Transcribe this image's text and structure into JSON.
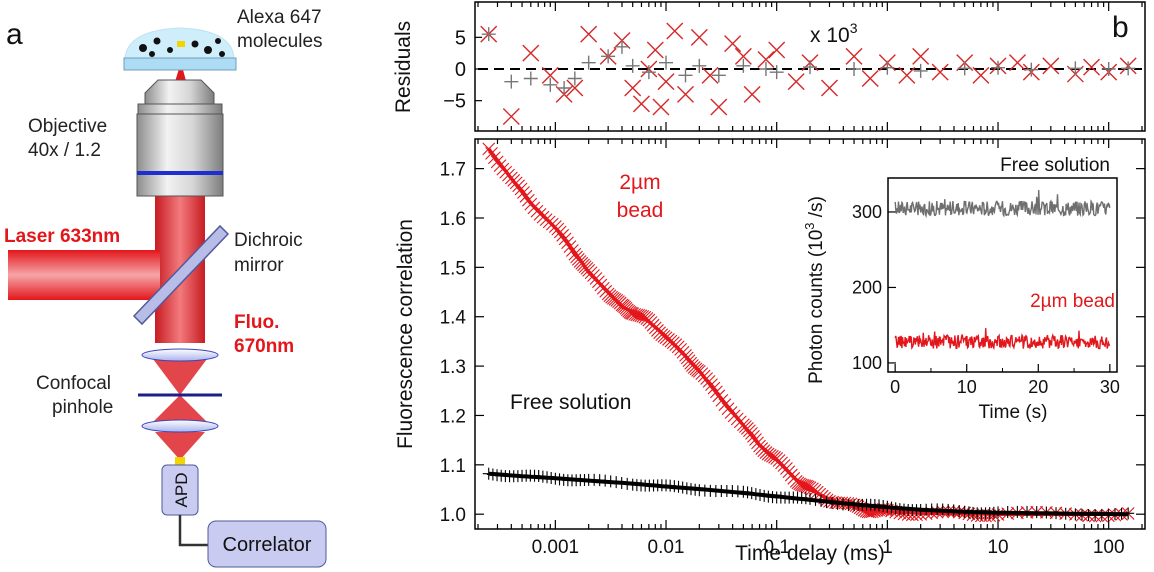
{
  "panel_a": {
    "letter": "a",
    "sample_label_1": "Alexa 647",
    "sample_label_2": "molecules",
    "objective_label_1": "Objective",
    "objective_label_2": "40x / 1.2",
    "laser_label": "Laser 633nm",
    "dichroic_label_1": "Dichroic",
    "dichroic_label_2": "mirror",
    "fluo_label_1": "Fluo.",
    "fluo_label_2": "670nm",
    "pinhole_label_1": "Confocal",
    "pinhole_label_2": "pinhole",
    "apd_label": "APD",
    "correlator_label": "Correlator",
    "colors": {
      "laser": "#e3161b",
      "blue_line": "#1f2ed1",
      "box": "#c9ccf0"
    }
  },
  "panel_b": {
    "letter": "b"
  },
  "chart_data": [
    {
      "type": "scatter",
      "name": "residuals",
      "ylabel": "Residuals",
      "x_scale": "log",
      "xlim": [
        0.0002,
        200
      ],
      "ylim": [
        -9,
        9
      ],
      "yticks": [
        5,
        0,
        -5
      ],
      "scale_annotation": "x 10",
      "scale_exponent": "3",
      "zero_line": "dashed",
      "series": [
        {
          "color": "#d62828",
          "marker": "x",
          "x": [
            0.00025,
            0.0004,
            0.0006,
            0.0009,
            0.0012,
            0.0015,
            0.002,
            0.003,
            0.004,
            0.005,
            0.006,
            0.007,
            0.008,
            0.009,
            0.01,
            0.012,
            0.015,
            0.02,
            0.025,
            0.03,
            0.04,
            0.05,
            0.06,
            0.08,
            0.1,
            0.15,
            0.2,
            0.3,
            0.5,
            0.7,
            1,
            1.5,
            2,
            3,
            5,
            7,
            10,
            15,
            20,
            30,
            50,
            70,
            100,
            150
          ],
          "y": [
            5.5,
            -7.5,
            2.5,
            -1,
            -4,
            -3,
            5.5,
            2,
            4.5,
            -3,
            -5.5,
            0,
            3,
            -6,
            -2,
            6,
            -4,
            5,
            -1,
            -6,
            4,
            2,
            -4,
            1.5,
            3,
            -2,
            1,
            -3,
            2,
            -1.5,
            1,
            -1,
            2,
            -0.5,
            1,
            -1,
            0.5,
            1,
            -0.5,
            0.5,
            -0.8,
            0.3,
            -0.5,
            0.5
          ]
        },
        {
          "color": "#777777",
          "marker": "+",
          "x": [
            0.00025,
            0.0004,
            0.0006,
            0.0009,
            0.0012,
            0.0015,
            0.002,
            0.003,
            0.004,
            0.005,
            0.007,
            0.01,
            0.015,
            0.02,
            0.03,
            0.05,
            0.08,
            0.1,
            0.2,
            0.5,
            1,
            2,
            5,
            10,
            20,
            50,
            100,
            150
          ],
          "y": [
            5.5,
            -2,
            -1.5,
            -2.5,
            -3,
            -1.5,
            1,
            2,
            3.5,
            0.5,
            -0.5,
            1,
            -1,
            0.5,
            -1,
            0.5,
            0,
            -0.5,
            0.3,
            0,
            0.2,
            -0.3,
            0.1,
            0.2,
            -0.1,
            0.1,
            0,
            0.1
          ]
        }
      ]
    },
    {
      "type": "line",
      "name": "fcs",
      "xlabel": "Time delay (ms)",
      "ylabel": "Fluorescence correlation",
      "x_scale": "log",
      "xlim": [
        0.0002,
        200
      ],
      "ylim": [
        0.97,
        1.76
      ],
      "xticks": [
        0.001,
        0.01,
        0.1,
        1,
        10,
        100
      ],
      "xtick_labels": [
        "0.001",
        "0.01",
        "0.1",
        "1",
        "10",
        "100"
      ],
      "yticks": [
        1.0,
        1.1,
        1.2,
        1.3,
        1.4,
        1.5,
        1.6,
        1.7
      ],
      "ytick_labels": [
        "1.0",
        "1.1",
        "1.2",
        "1.3",
        "1.4",
        "1.5",
        "1.6",
        "1.7"
      ],
      "annotations": [
        "2µm",
        "bead",
        "Free solution"
      ],
      "series": [
        {
          "color": "#e3161b",
          "marker": "x",
          "x": [
            0.00025,
            0.0004,
            0.0006,
            0.001,
            0.0015,
            0.002,
            0.003,
            0.004,
            0.005,
            0.007,
            0.01,
            0.015,
            0.02,
            0.03,
            0.05,
            0.07,
            0.1,
            0.15,
            0.2,
            0.3,
            0.5,
            0.7,
            1,
            2,
            5,
            10,
            50,
            150
          ],
          "y": [
            1.74,
            1.68,
            1.63,
            1.58,
            1.53,
            1.49,
            1.45,
            1.42,
            1.41,
            1.39,
            1.36,
            1.32,
            1.29,
            1.24,
            1.18,
            1.14,
            1.11,
            1.07,
            1.05,
            1.03,
            1.015,
            1.008,
            1.005,
            1.002,
            1.001,
            1.0,
            1.0,
            1.0
          ]
        },
        {
          "color": "#000000",
          "marker": "+",
          "x": [
            0.00025,
            0.0005,
            0.001,
            0.002,
            0.005,
            0.01,
            0.02,
            0.05,
            0.1,
            0.2,
            0.5,
            1,
            2,
            5,
            10,
            50,
            150
          ],
          "y": [
            1.082,
            1.077,
            1.073,
            1.068,
            1.062,
            1.056,
            1.051,
            1.043,
            1.036,
            1.029,
            1.02,
            1.014,
            1.009,
            1.005,
            1.003,
            1.001,
            1.0
          ]
        }
      ]
    },
    {
      "type": "line",
      "name": "inset",
      "xlabel": "Time (s)",
      "ylabel": "Photon counts (10",
      "ylabel_exponent": "3",
      "ylabel_suffix": " /s)",
      "xlim": [
        -1,
        31
      ],
      "ylim": [
        88,
        345
      ],
      "xticks": [
        0,
        10,
        20,
        30
      ],
      "xtick_labels": [
        "0",
        "10",
        "20",
        "30"
      ],
      "yticks": [
        100,
        200,
        300
      ],
      "ytick_labels": [
        "100",
        "200",
        "300"
      ],
      "series": [
        {
          "name": "Free solution",
          "color": "#6f6f6f",
          "mean": 305,
          "noise": 10
        },
        {
          "name": "2µm bead",
          "color": "#e3161b",
          "mean": 128,
          "noise": 9
        }
      ]
    }
  ]
}
